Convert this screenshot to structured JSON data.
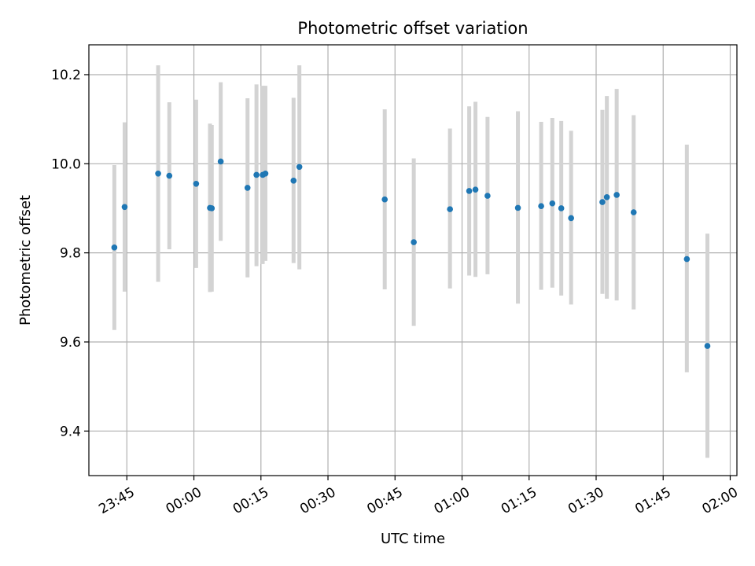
{
  "chart_data": {
    "type": "scatter",
    "title": "Photometric offset variation",
    "xlabel": "UTC time",
    "ylabel": "Photometric offset",
    "x_tick_labels": [
      "23:45",
      "00:00",
      "00:15",
      "00:30",
      "00:45",
      "01:00",
      "01:15",
      "01:30",
      "01:45",
      "02:00"
    ],
    "x_ticks_minutes": [
      -15,
      0,
      15,
      30,
      45,
      60,
      75,
      90,
      105,
      120
    ],
    "x_range_minutes": [
      -23.5,
      121.5
    ],
    "y_ticks": [
      9.4,
      9.6,
      9.8,
      10.0,
      10.2
    ],
    "y_tick_labels": [
      "9.4",
      "9.6",
      "9.8",
      "10.0",
      "10.2"
    ],
    "ylim": [
      9.3,
      10.267
    ],
    "grid": true,
    "colors": {
      "point": "#1f77b4",
      "errorbar": "#d3d3d3",
      "grid": "#b0b0b0"
    },
    "series": [
      {
        "points": [
          {
            "t": "23:42.2",
            "y": 9.812,
            "lo": 9.627,
            "hi": 9.997
          },
          {
            "t": "23:44.5",
            "y": 9.903,
            "lo": 9.713,
            "hi": 10.093
          },
          {
            "t": "23:52.0",
            "y": 9.978,
            "lo": 9.735,
            "hi": 10.221
          },
          {
            "t": "23:54.5",
            "y": 9.973,
            "lo": 9.808,
            "hi": 10.138
          },
          {
            "t": "00:00.5",
            "y": 9.955,
            "lo": 9.766,
            "hi": 10.144
          },
          {
            "t": "00:03.6",
            "y": 9.901,
            "lo": 9.712,
            "hi": 10.09
          },
          {
            "t": "00:04.0",
            "y": 9.9,
            "lo": 9.713,
            "hi": 10.087
          },
          {
            "t": "00:06.0",
            "y": 10.005,
            "lo": 9.827,
            "hi": 10.183
          },
          {
            "t": "00:12.0",
            "y": 9.946,
            "lo": 9.745,
            "hi": 10.147
          },
          {
            "t": "00:14.0",
            "y": 9.975,
            "lo": 9.77,
            "hi": 10.178
          },
          {
            "t": "00:15.4",
            "y": 9.975,
            "lo": 9.775,
            "hi": 10.175
          },
          {
            "t": "00:16.0",
            "y": 9.978,
            "lo": 9.782,
            "hi": 10.175
          },
          {
            "t": "00:22.3",
            "y": 9.962,
            "lo": 9.777,
            "hi": 10.148
          },
          {
            "t": "00:23.6",
            "y": 9.993,
            "lo": 9.763,
            "hi": 10.221
          },
          {
            "t": "00:42.7",
            "y": 9.92,
            "lo": 9.718,
            "hi": 10.122
          },
          {
            "t": "00:49.2",
            "y": 9.824,
            "lo": 9.636,
            "hi": 10.012
          },
          {
            "t": "00:57.3",
            "y": 9.898,
            "lo": 9.72,
            "hi": 10.079
          },
          {
            "t": "01:01.6",
            "y": 9.939,
            "lo": 9.749,
            "hi": 10.129
          },
          {
            "t": "01:03.0",
            "y": 9.942,
            "lo": 9.746,
            "hi": 10.139
          },
          {
            "t": "01:05.7",
            "y": 9.928,
            "lo": 9.752,
            "hi": 10.105
          },
          {
            "t": "01:12.5",
            "y": 9.901,
            "lo": 9.686,
            "hi": 10.118
          },
          {
            "t": "01:17.7",
            "y": 9.905,
            "lo": 9.717,
            "hi": 10.094
          },
          {
            "t": "01:20.2",
            "y": 9.911,
            "lo": 9.722,
            "hi": 10.103
          },
          {
            "t": "01:22.2",
            "y": 9.9,
            "lo": 9.704,
            "hi": 10.096
          },
          {
            "t": "01:24.4",
            "y": 9.878,
            "lo": 9.684,
            "hi": 10.074
          },
          {
            "t": "01:31.4",
            "y": 9.914,
            "lo": 9.708,
            "hi": 10.121
          },
          {
            "t": "01:32.4",
            "y": 9.925,
            "lo": 9.697,
            "hi": 10.152
          },
          {
            "t": "01:34.6",
            "y": 9.93,
            "lo": 9.693,
            "hi": 10.168
          },
          {
            "t": "01:38.4",
            "y": 9.891,
            "lo": 9.673,
            "hi": 10.109
          },
          {
            "t": "01:50.3",
            "y": 9.786,
            "lo": 9.532,
            "hi": 10.043
          },
          {
            "t": "01:54.9",
            "y": 9.591,
            "lo": 9.34,
            "hi": 9.843
          }
        ]
      }
    ]
  }
}
